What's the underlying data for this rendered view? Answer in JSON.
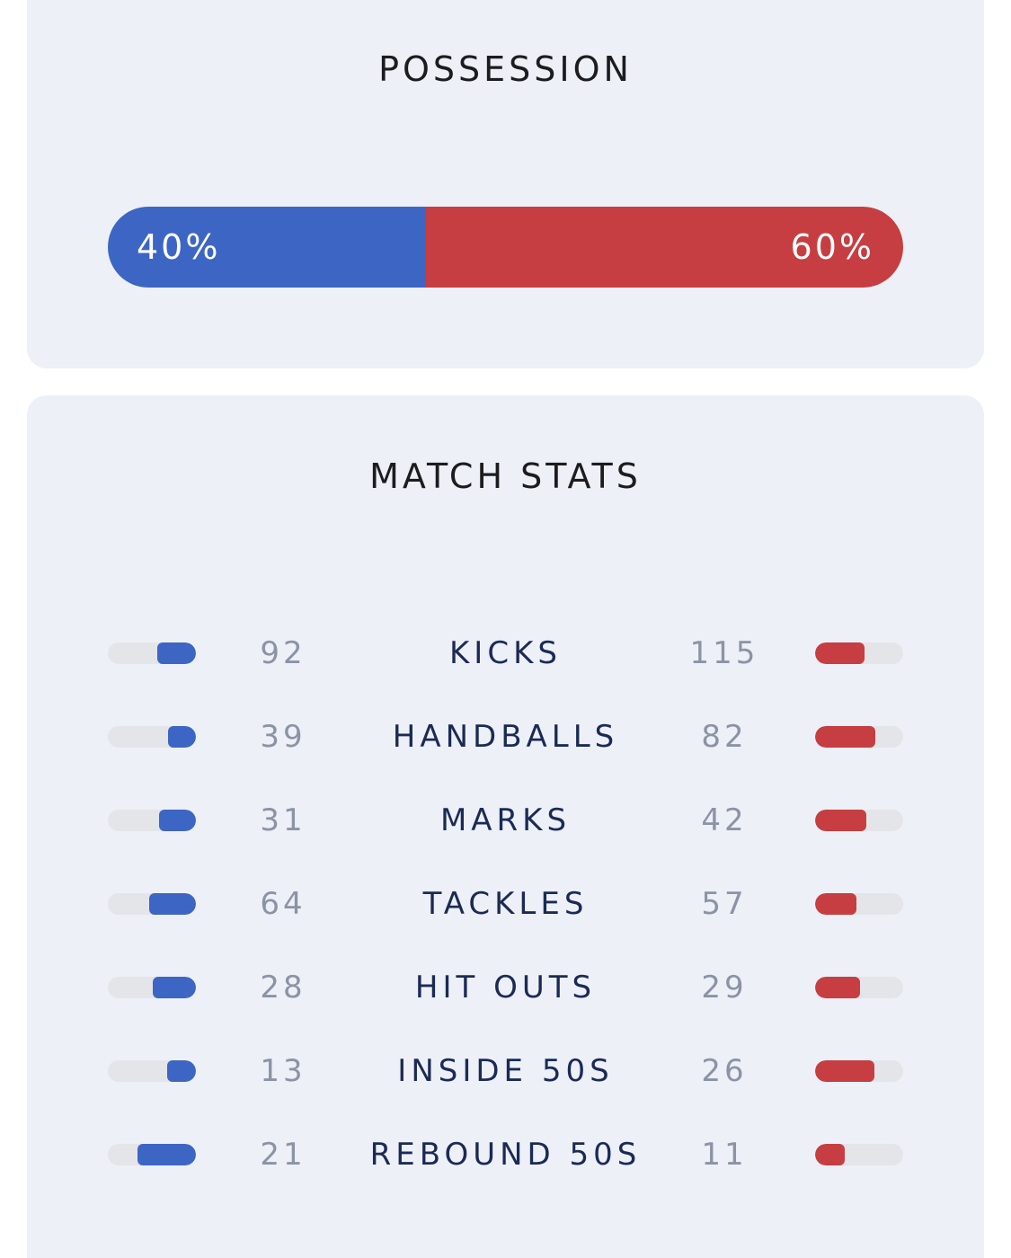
{
  "possession": {
    "title": "POSSESSION",
    "home_label": "40%",
    "away_label": "60%",
    "home_fraction": 0.4,
    "home_color": "#3d66c4",
    "away_color": "#c63e41"
  },
  "match_stats": {
    "title": "MATCH STATS",
    "rows": [
      {
        "label": "KICKS",
        "home": "92",
        "away": "115",
        "home_level": 0.44,
        "away_level": 0.56
      },
      {
        "label": "HANDBALLS",
        "home": "39",
        "away": "82",
        "home_level": 0.32,
        "away_level": 0.68
      },
      {
        "label": "MARKS",
        "home": "31",
        "away": "42",
        "home_level": 0.42,
        "away_level": 0.58
      },
      {
        "label": "TACKLES",
        "home": "64",
        "away": "57",
        "home_level": 0.53,
        "away_level": 0.47
      },
      {
        "label": "HIT OUTS",
        "home": "28",
        "away": "29",
        "home_level": 0.49,
        "away_level": 0.51
      },
      {
        "label": "INSIDE 50S",
        "home": "13",
        "away": "26",
        "home_level": 0.33,
        "away_level": 0.67
      },
      {
        "label": "REBOUND 50S",
        "home": "21",
        "away": "11",
        "home_level": 0.66,
        "away_level": 0.34
      }
    ]
  }
}
